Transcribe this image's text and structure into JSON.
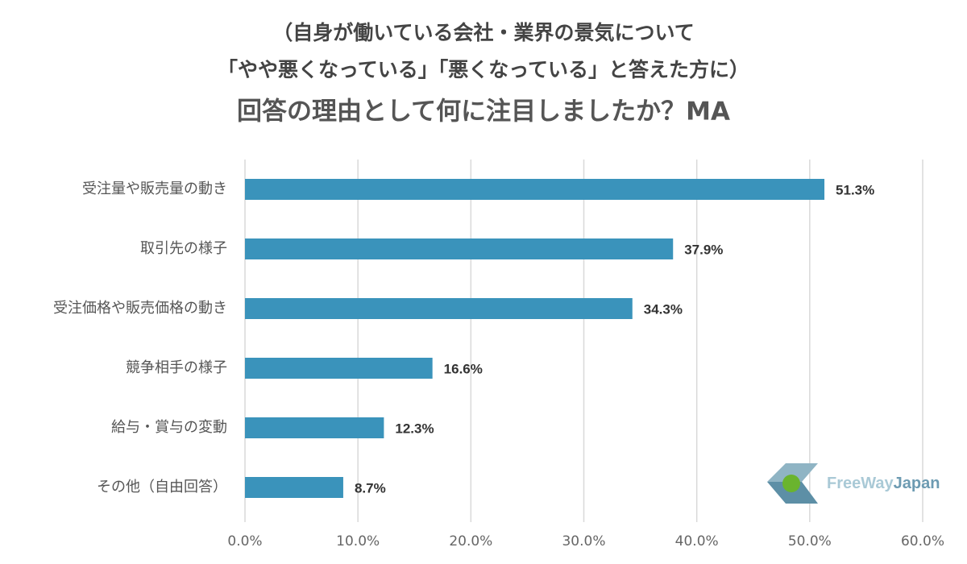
{
  "chart_data": {
    "type": "bar",
    "orientation": "horizontal",
    "subtitle": [
      "（自身が働いている会社・業界の景気について",
      "「やや悪くなっている」「悪くなっている」と答えた方に）"
    ],
    "title": "回答の理由として何に注目しましたか？MA",
    "categories": [
      "受注量や販売量の動き",
      "取引先の様子",
      "受注価格や販売価格の動き",
      "競争相手の様子",
      "給与・賞与の変動",
      "その他（自由回答）"
    ],
    "values": [
      51.3,
      37.9,
      34.3,
      16.6,
      12.3,
      8.7
    ],
    "value_labels": [
      "51.3%",
      "37.9%",
      "34.3%",
      "16.6%",
      "12.3%",
      "8.7%"
    ],
    "color": "#3a93bb",
    "xlim": [
      0,
      60
    ],
    "xticks": [
      {
        "value": 0,
        "label": "0.0%"
      },
      {
        "value": 10,
        "label": "10.0%"
      },
      {
        "value": 20,
        "label": "20.0%"
      },
      {
        "value": 30,
        "label": "30.0%"
      },
      {
        "value": 40,
        "label": "40.0%"
      },
      {
        "value": 50,
        "label": "50.0%"
      },
      {
        "value": 60,
        "label": "60.0%"
      }
    ],
    "grid": true,
    "logo": [
      "FreeWay",
      "Japan"
    ]
  }
}
